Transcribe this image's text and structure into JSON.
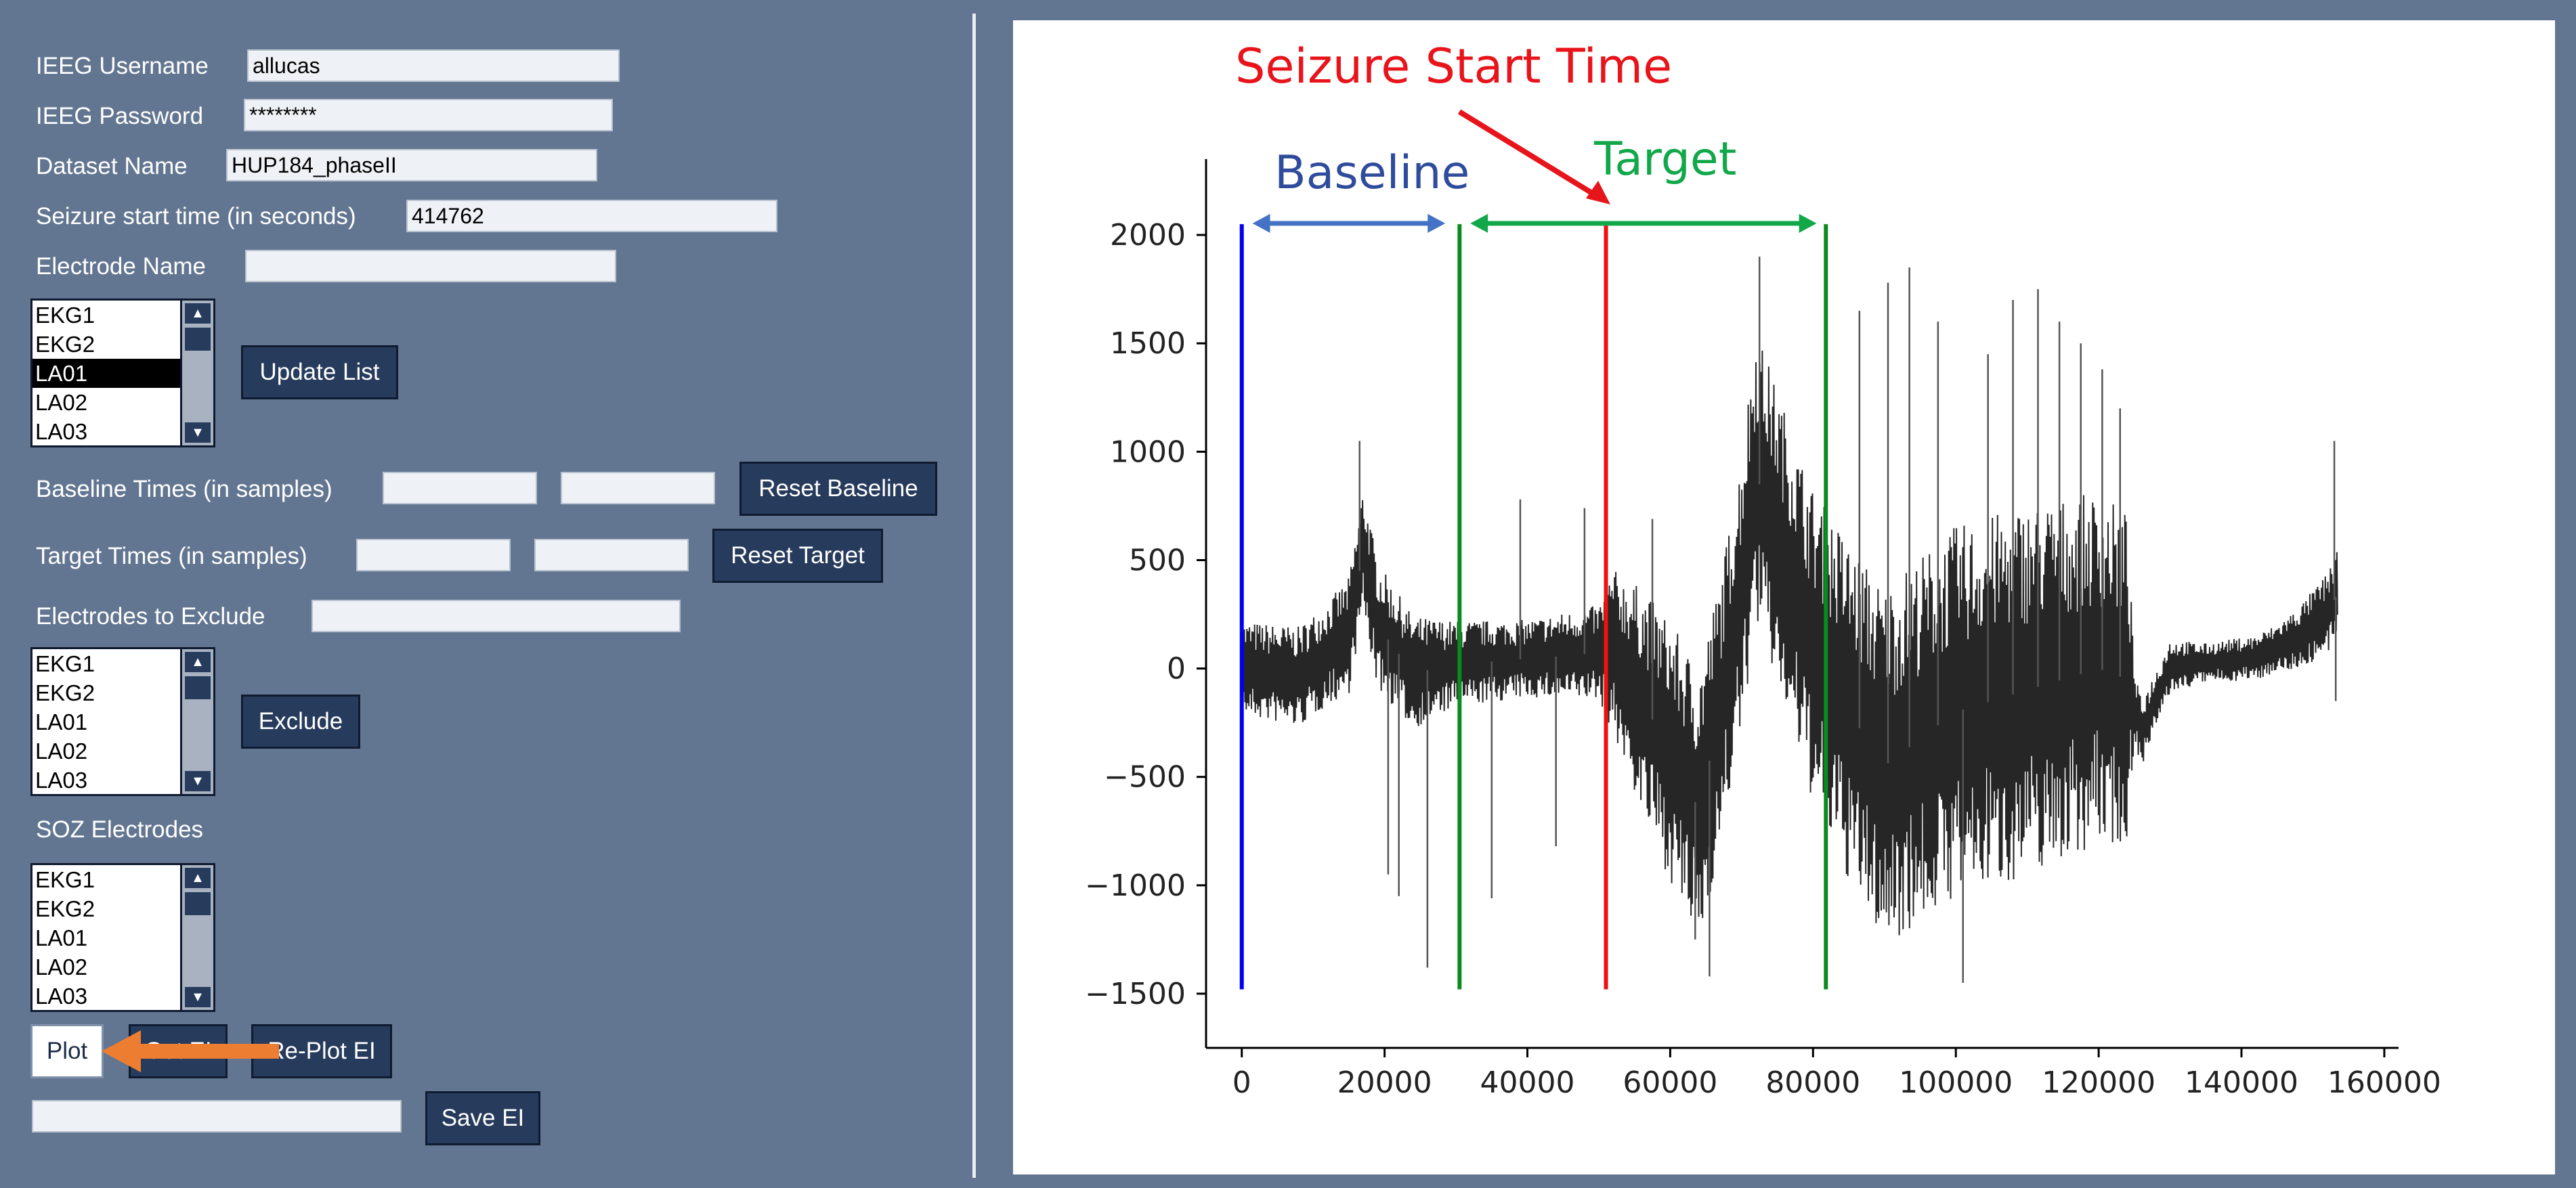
{
  "form": {
    "username_label": "IEEG Username",
    "username_value": "allucas",
    "password_label": "IEEG Password",
    "password_value": "********",
    "dataset_label": "Dataset Name",
    "dataset_value": "HUP184_phaseII",
    "seizure_label": "Seizure start time (in seconds)",
    "seizure_value": "414762",
    "electrode_label": "Electrode Name",
    "electrode_value": "",
    "baseline_label": "Baseline Times (in samples)",
    "target_label": "Target Times (in samples)",
    "exclude_label": "Electrodes to Exclude",
    "soz_label": "SOZ Electrodes",
    "save_field_value": ""
  },
  "lists": {
    "electrodes": [
      "EKG1",
      "EKG2",
      "LA01",
      "LA02",
      "LA03"
    ],
    "selected_electrode": "LA01",
    "exclude": [
      "EKG1",
      "EKG2",
      "LA01",
      "LA02",
      "LA03"
    ],
    "soz": [
      "EKG1",
      "EKG2",
      "LA01",
      "LA02",
      "LA03"
    ]
  },
  "buttons": {
    "update_list": "Update List",
    "reset_baseline": "Reset Baseline",
    "reset_target": "Reset Target",
    "exclude": "Exclude",
    "plot": "Plot",
    "get_ei": "Get EI",
    "get_ei_visible": "Get EI",
    "replot_ei": "Re-Plot EI",
    "save_ei": "Save EI"
  },
  "annotations": {
    "seizure_start": "Seizure Start Time",
    "baseline": "Baseline",
    "target": "Target"
  },
  "colors": {
    "seizure": "#e8141b",
    "baseline": "#2f4c9c",
    "baseline_arrow": "#4472c4",
    "target": "#12a84a",
    "blue_line": "#0000ee",
    "green_line": "#0b8a1e",
    "red_line": "#ee1111",
    "callout_arrow": "#ed7d31"
  },
  "chart_data": {
    "type": "line",
    "xlim": [
      -5000,
      162000
    ],
    "ylim": [
      -1750,
      2350
    ],
    "xticks": [
      0,
      20000,
      40000,
      60000,
      80000,
      100000,
      120000,
      140000,
      160000
    ],
    "xtick_labels": [
      "0",
      "20000",
      "40000",
      "60000",
      "80000",
      "100000",
      "120000",
      "140000",
      "160000"
    ],
    "yticks": [
      2000,
      1500,
      1000,
      500,
      0,
      -500,
      -1000,
      -1500
    ],
    "ytick_labels": [
      "2000",
      "1500",
      "1000",
      "500",
      "0",
      "−500",
      "−1000",
      "−1500"
    ],
    "grid": false,
    "vlines": [
      {
        "x": 0,
        "ymin": -1480,
        "ymax": 2050,
        "color": "blue"
      },
      {
        "x": 30500,
        "ymin": -1480,
        "ymax": 2050,
        "color": "green"
      },
      {
        "x": 51000,
        "ymin": -1480,
        "ymax": 2050,
        "color": "red"
      },
      {
        "x": 81800,
        "ymin": -1480,
        "ymax": 2050,
        "color": "green"
      }
    ],
    "baseline_span": [
      1500,
      28500
    ],
    "target_span": [
      32000,
      80500
    ],
    "signal": {
      "x_end": 153500,
      "center_points": [
        [
          0,
          0
        ],
        [
          8000,
          -40
        ],
        [
          15000,
          150
        ],
        [
          17000,
          550
        ],
        [
          19000,
          200
        ],
        [
          24000,
          -20
        ],
        [
          30000,
          20
        ],
        [
          38000,
          40
        ],
        [
          46000,
          60
        ],
        [
          52000,
          80
        ],
        [
          56000,
          -150
        ],
        [
          60000,
          -380
        ],
        [
          64000,
          -650
        ],
        [
          67000,
          -200
        ],
        [
          70000,
          350
        ],
        [
          72000,
          900
        ],
        [
          75000,
          600
        ],
        [
          80000,
          100
        ],
        [
          85000,
          -200
        ],
        [
          90000,
          -450
        ],
        [
          100000,
          -200
        ],
        [
          110000,
          -100
        ],
        [
          120000,
          0
        ],
        [
          124000,
          -50
        ],
        [
          126000,
          -300
        ],
        [
          130000,
          10
        ],
        [
          136000,
          30
        ],
        [
          142000,
          50
        ],
        [
          148000,
          140
        ],
        [
          152000,
          250
        ],
        [
          153500,
          350
        ]
      ],
      "amplitude_points": [
        [
          0,
          220
        ],
        [
          12000,
          240
        ],
        [
          18000,
          300
        ],
        [
          24000,
          260
        ],
        [
          30000,
          200
        ],
        [
          40000,
          180
        ],
        [
          50000,
          220
        ],
        [
          52000,
          380
        ],
        [
          56000,
          520
        ],
        [
          60000,
          600
        ],
        [
          64000,
          640
        ],
        [
          68000,
          620
        ],
        [
          72000,
          680
        ],
        [
          78000,
          700
        ],
        [
          84000,
          780
        ],
        [
          92000,
          840
        ],
        [
          100000,
          860
        ],
        [
          110000,
          860
        ],
        [
          118000,
          820
        ],
        [
          124000,
          780
        ],
        [
          125000,
          160
        ],
        [
          135000,
          90
        ],
        [
          145000,
          110
        ],
        [
          152000,
          190
        ],
        [
          153500,
          220
        ]
      ],
      "spikes": [
        [
          16500,
          1050
        ],
        [
          22000,
          -1050
        ],
        [
          26000,
          -1380
        ],
        [
          20500,
          -950
        ],
        [
          35000,
          -1060
        ],
        [
          39000,
          780
        ],
        [
          44000,
          -820
        ],
        [
          48000,
          740
        ],
        [
          57500,
          690
        ],
        [
          63500,
          -1250
        ],
        [
          65500,
          -1420
        ],
        [
          72500,
          1900
        ],
        [
          86500,
          1650
        ],
        [
          90500,
          1780
        ],
        [
          93500,
          1850
        ],
        [
          97500,
          1600
        ],
        [
          101000,
          -1450
        ],
        [
          104500,
          1450
        ],
        [
          108000,
          1700
        ],
        [
          111500,
          1750
        ],
        [
          114500,
          1600
        ],
        [
          117500,
          1500
        ],
        [
          120500,
          1380
        ],
        [
          123000,
          1200
        ],
        [
          153000,
          1050
        ],
        [
          153200,
          -150
        ]
      ]
    }
  }
}
